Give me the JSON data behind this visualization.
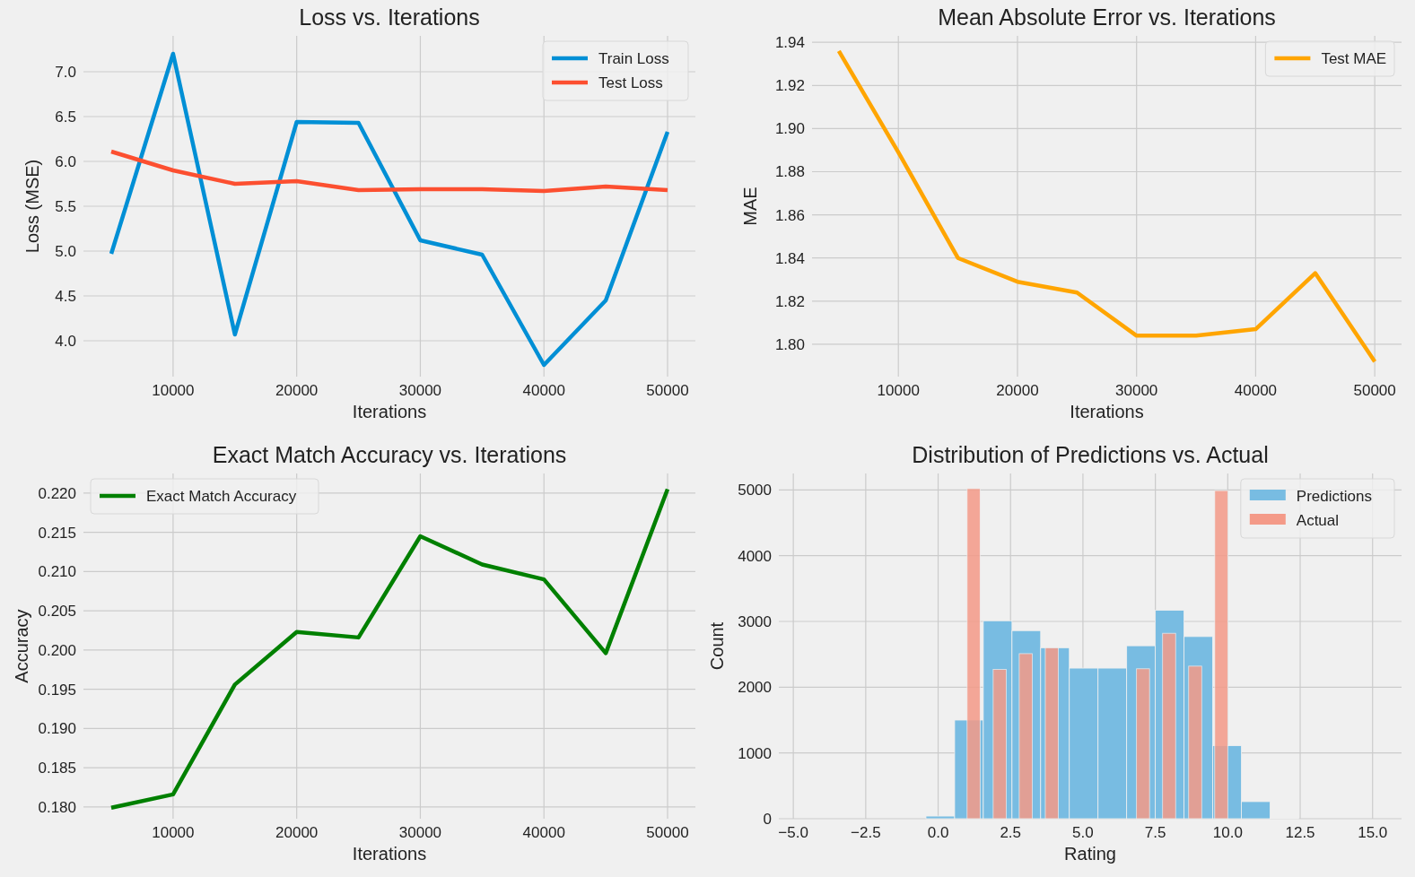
{
  "chart_data": [
    {
      "type": "line",
      "title": "Loss vs. Iterations",
      "xlabel": "Iterations",
      "ylabel": "Loss (MSE)",
      "x": [
        5000,
        10000,
        15000,
        20000,
        25000,
        30000,
        35000,
        40000,
        45000,
        50000
      ],
      "series": [
        {
          "name": "Train Loss",
          "color": "#008fd5",
          "values": [
            4.97,
            7.2,
            4.07,
            6.44,
            6.43,
            5.12,
            4.96,
            3.73,
            4.45,
            6.33
          ]
        },
        {
          "name": "Test Loss",
          "color": "#fc4f30",
          "values": [
            6.11,
            5.9,
            5.75,
            5.78,
            5.68,
            5.69,
            5.69,
            5.67,
            5.72,
            5.68
          ]
        }
      ],
      "xlim": [
        2750,
        52250
      ],
      "ylim": [
        3.6,
        7.4
      ],
      "xticks": [
        10000,
        20000,
        30000,
        40000,
        50000
      ],
      "yticks": [
        {
          "value": 4,
          "label": "4.0"
        },
        {
          "value": 4.5,
          "label": "4.5"
        },
        {
          "value": 5,
          "label": "5.0"
        },
        {
          "value": 5.5,
          "label": "5.5"
        },
        {
          "value": 6,
          "label": "6.0"
        },
        {
          "value": 6.5,
          "label": "6.5"
        },
        {
          "value": 7,
          "label": "7.0"
        }
      ],
      "grid": true,
      "legend": "top right"
    },
    {
      "type": "line",
      "title": "Mean Absolute Error vs. Iterations",
      "xlabel": "Iterations",
      "ylabel": "MAE",
      "x": [
        5000,
        10000,
        15000,
        20000,
        25000,
        30000,
        35000,
        40000,
        45000,
        50000
      ],
      "series": [
        {
          "name": "Test MAE",
          "color": "#ffa500",
          "values": [
            1.936,
            1.889,
            1.84,
            1.829,
            1.824,
            1.804,
            1.804,
            1.807,
            1.833,
            1.792
          ]
        }
      ],
      "xlim": [
        2750,
        52250
      ],
      "ylim": [
        1.785,
        1.943
      ],
      "xticks": [
        10000,
        20000,
        30000,
        40000,
        50000
      ],
      "yticks": [
        {
          "value": 1.8,
          "label": "1.80"
        },
        {
          "value": 1.82,
          "label": "1.82"
        },
        {
          "value": 1.84,
          "label": "1.84"
        },
        {
          "value": 1.86,
          "label": "1.86"
        },
        {
          "value": 1.88,
          "label": "1.88"
        },
        {
          "value": 1.9,
          "label": "1.90"
        },
        {
          "value": 1.92,
          "label": "1.92"
        },
        {
          "value": 1.94,
          "label": "1.94"
        }
      ],
      "grid": true,
      "legend": "top right"
    },
    {
      "type": "line",
      "title": "Exact Match Accuracy vs. Iterations",
      "xlabel": "Iterations",
      "ylabel": "Accuracy",
      "x": [
        5000,
        10000,
        15000,
        20000,
        25000,
        30000,
        35000,
        40000,
        45000,
        50000
      ],
      "series": [
        {
          "name": "Exact Match Accuracy",
          "color": "#008000",
          "values": [
            0.1799,
            0.1816,
            0.1956,
            0.2023,
            0.2016,
            0.2145,
            0.2109,
            0.209,
            0.1996,
            0.2205
          ]
        }
      ],
      "xlim": [
        2750,
        52250
      ],
      "ylim": [
        0.1785,
        0.2225
      ],
      "xticks": [
        10000,
        20000,
        30000,
        40000,
        50000
      ],
      "yticks": [
        {
          "value": 0.18,
          "label": "0.180"
        },
        {
          "value": 0.185,
          "label": "0.185"
        },
        {
          "value": 0.19,
          "label": "0.190"
        },
        {
          "value": 0.195,
          "label": "0.195"
        },
        {
          "value": 0.2,
          "label": "0.200"
        },
        {
          "value": 0.205,
          "label": "0.205"
        },
        {
          "value": 0.21,
          "label": "0.210"
        },
        {
          "value": 0.215,
          "label": "0.215"
        },
        {
          "value": 0.22,
          "label": "0.220"
        }
      ],
      "grid": true,
      "legend": "top left"
    },
    {
      "type": "histogram",
      "title": "Distribution of Predictions vs. Actual",
      "xlabel": "Rating",
      "ylabel": "Count",
      "bins": [
        -0.42,
        0.57,
        1.56,
        2.55,
        3.54,
        4.53,
        5.52,
        6.51,
        7.5,
        8.49,
        9.48,
        10.47,
        11.46,
        12.45
      ],
      "series": [
        {
          "name": "Predictions",
          "color": "#78bce2",
          "values": [
            40,
            1500,
            3010,
            2860,
            2600,
            2290,
            2290,
            2630,
            3170,
            2770,
            1110,
            260,
            10
          ]
        },
        {
          "name": "Actual",
          "color": "#f49a88",
          "bins": [
            1,
            1.45,
            1.9,
            2.35,
            2.8,
            3.25,
            3.7,
            4.15,
            4.6,
            5.05,
            5.5,
            5.95,
            6.4,
            6.85,
            7.3,
            7.75,
            8.2,
            8.65,
            9.1,
            9.55,
            10
          ],
          "values": [
            5020,
            0,
            2270,
            0,
            2510,
            0,
            2600,
            0,
            0,
            0,
            0,
            0,
            0,
            2280,
            0,
            2820,
            0,
            2320,
            0,
            4990
          ]
        }
      ],
      "xlim": [
        -5.5,
        16
      ],
      "ylim": [
        0,
        5250
      ],
      "xticks": [
        {
          "value": -5,
          "label": "−5.0"
        },
        {
          "value": -2.5,
          "label": "−2.5"
        },
        {
          "value": 0,
          "label": "0.0"
        },
        {
          "value": 2.5,
          "label": "2.5"
        },
        {
          "value": 5,
          "label": "5.0"
        },
        {
          "value": 7.5,
          "label": "7.5"
        },
        {
          "value": 10,
          "label": "10.0"
        },
        {
          "value": 12.5,
          "label": "12.5"
        },
        {
          "value": 15,
          "label": "15.0"
        }
      ],
      "yticks": [
        0,
        1000,
        2000,
        3000,
        4000,
        5000
      ],
      "grid": true,
      "legend": "top right"
    }
  ]
}
